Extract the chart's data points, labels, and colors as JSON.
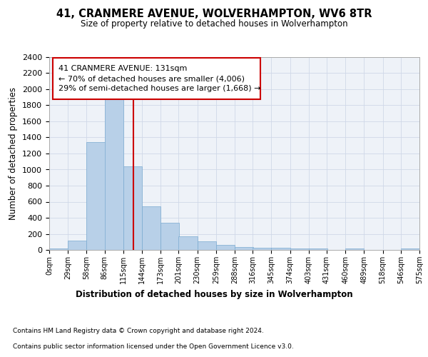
{
  "title": "41, CRANMERE AVENUE, WOLVERHAMPTON, WV6 8TR",
  "subtitle": "Size of property relative to detached houses in Wolverhampton",
  "xlabel": "Distribution of detached houses by size in Wolverhampton",
  "ylabel": "Number of detached properties",
  "footer1": "Contains HM Land Registry data © Crown copyright and database right 2024.",
  "footer2": "Contains public sector information licensed under the Open Government Licence v3.0.",
  "bar_color": "#b8d0e8",
  "bar_edge_color": "#7aaad0",
  "grid_color": "#d0d8e8",
  "vline_color": "#cc0000",
  "annotation_box_color": "#cc0000",
  "annotation_text": "41 CRANMERE AVENUE: 131sqm\n← 70% of detached houses are smaller (4,006)\n29% of semi-detached houses are larger (1,668) →",
  "property_size": 131,
  "bin_edges": [
    0,
    29,
    58,
    86,
    115,
    144,
    173,
    201,
    230,
    259,
    288,
    316,
    345,
    374,
    403,
    431,
    460,
    489,
    518,
    546,
    575
  ],
  "bin_labels": [
    "0sqm",
    "29sqm",
    "58sqm",
    "86sqm",
    "115sqm",
    "144sqm",
    "173sqm",
    "201sqm",
    "230sqm",
    "259sqm",
    "288sqm",
    "316sqm",
    "345sqm",
    "374sqm",
    "403sqm",
    "431sqm",
    "460sqm",
    "489sqm",
    "518sqm",
    "546sqm",
    "575sqm"
  ],
  "bar_heights": [
    15,
    120,
    1340,
    1890,
    1040,
    540,
    335,
    165,
    110,
    60,
    40,
    30,
    25,
    20,
    15,
    0,
    15,
    0,
    0,
    15
  ],
  "ylim": [
    0,
    2400
  ],
  "yticks": [
    0,
    200,
    400,
    600,
    800,
    1000,
    1200,
    1400,
    1600,
    1800,
    2000,
    2200,
    2400
  ],
  "background_color": "#ffffff",
  "plot_bg_color": "#eef2f8"
}
